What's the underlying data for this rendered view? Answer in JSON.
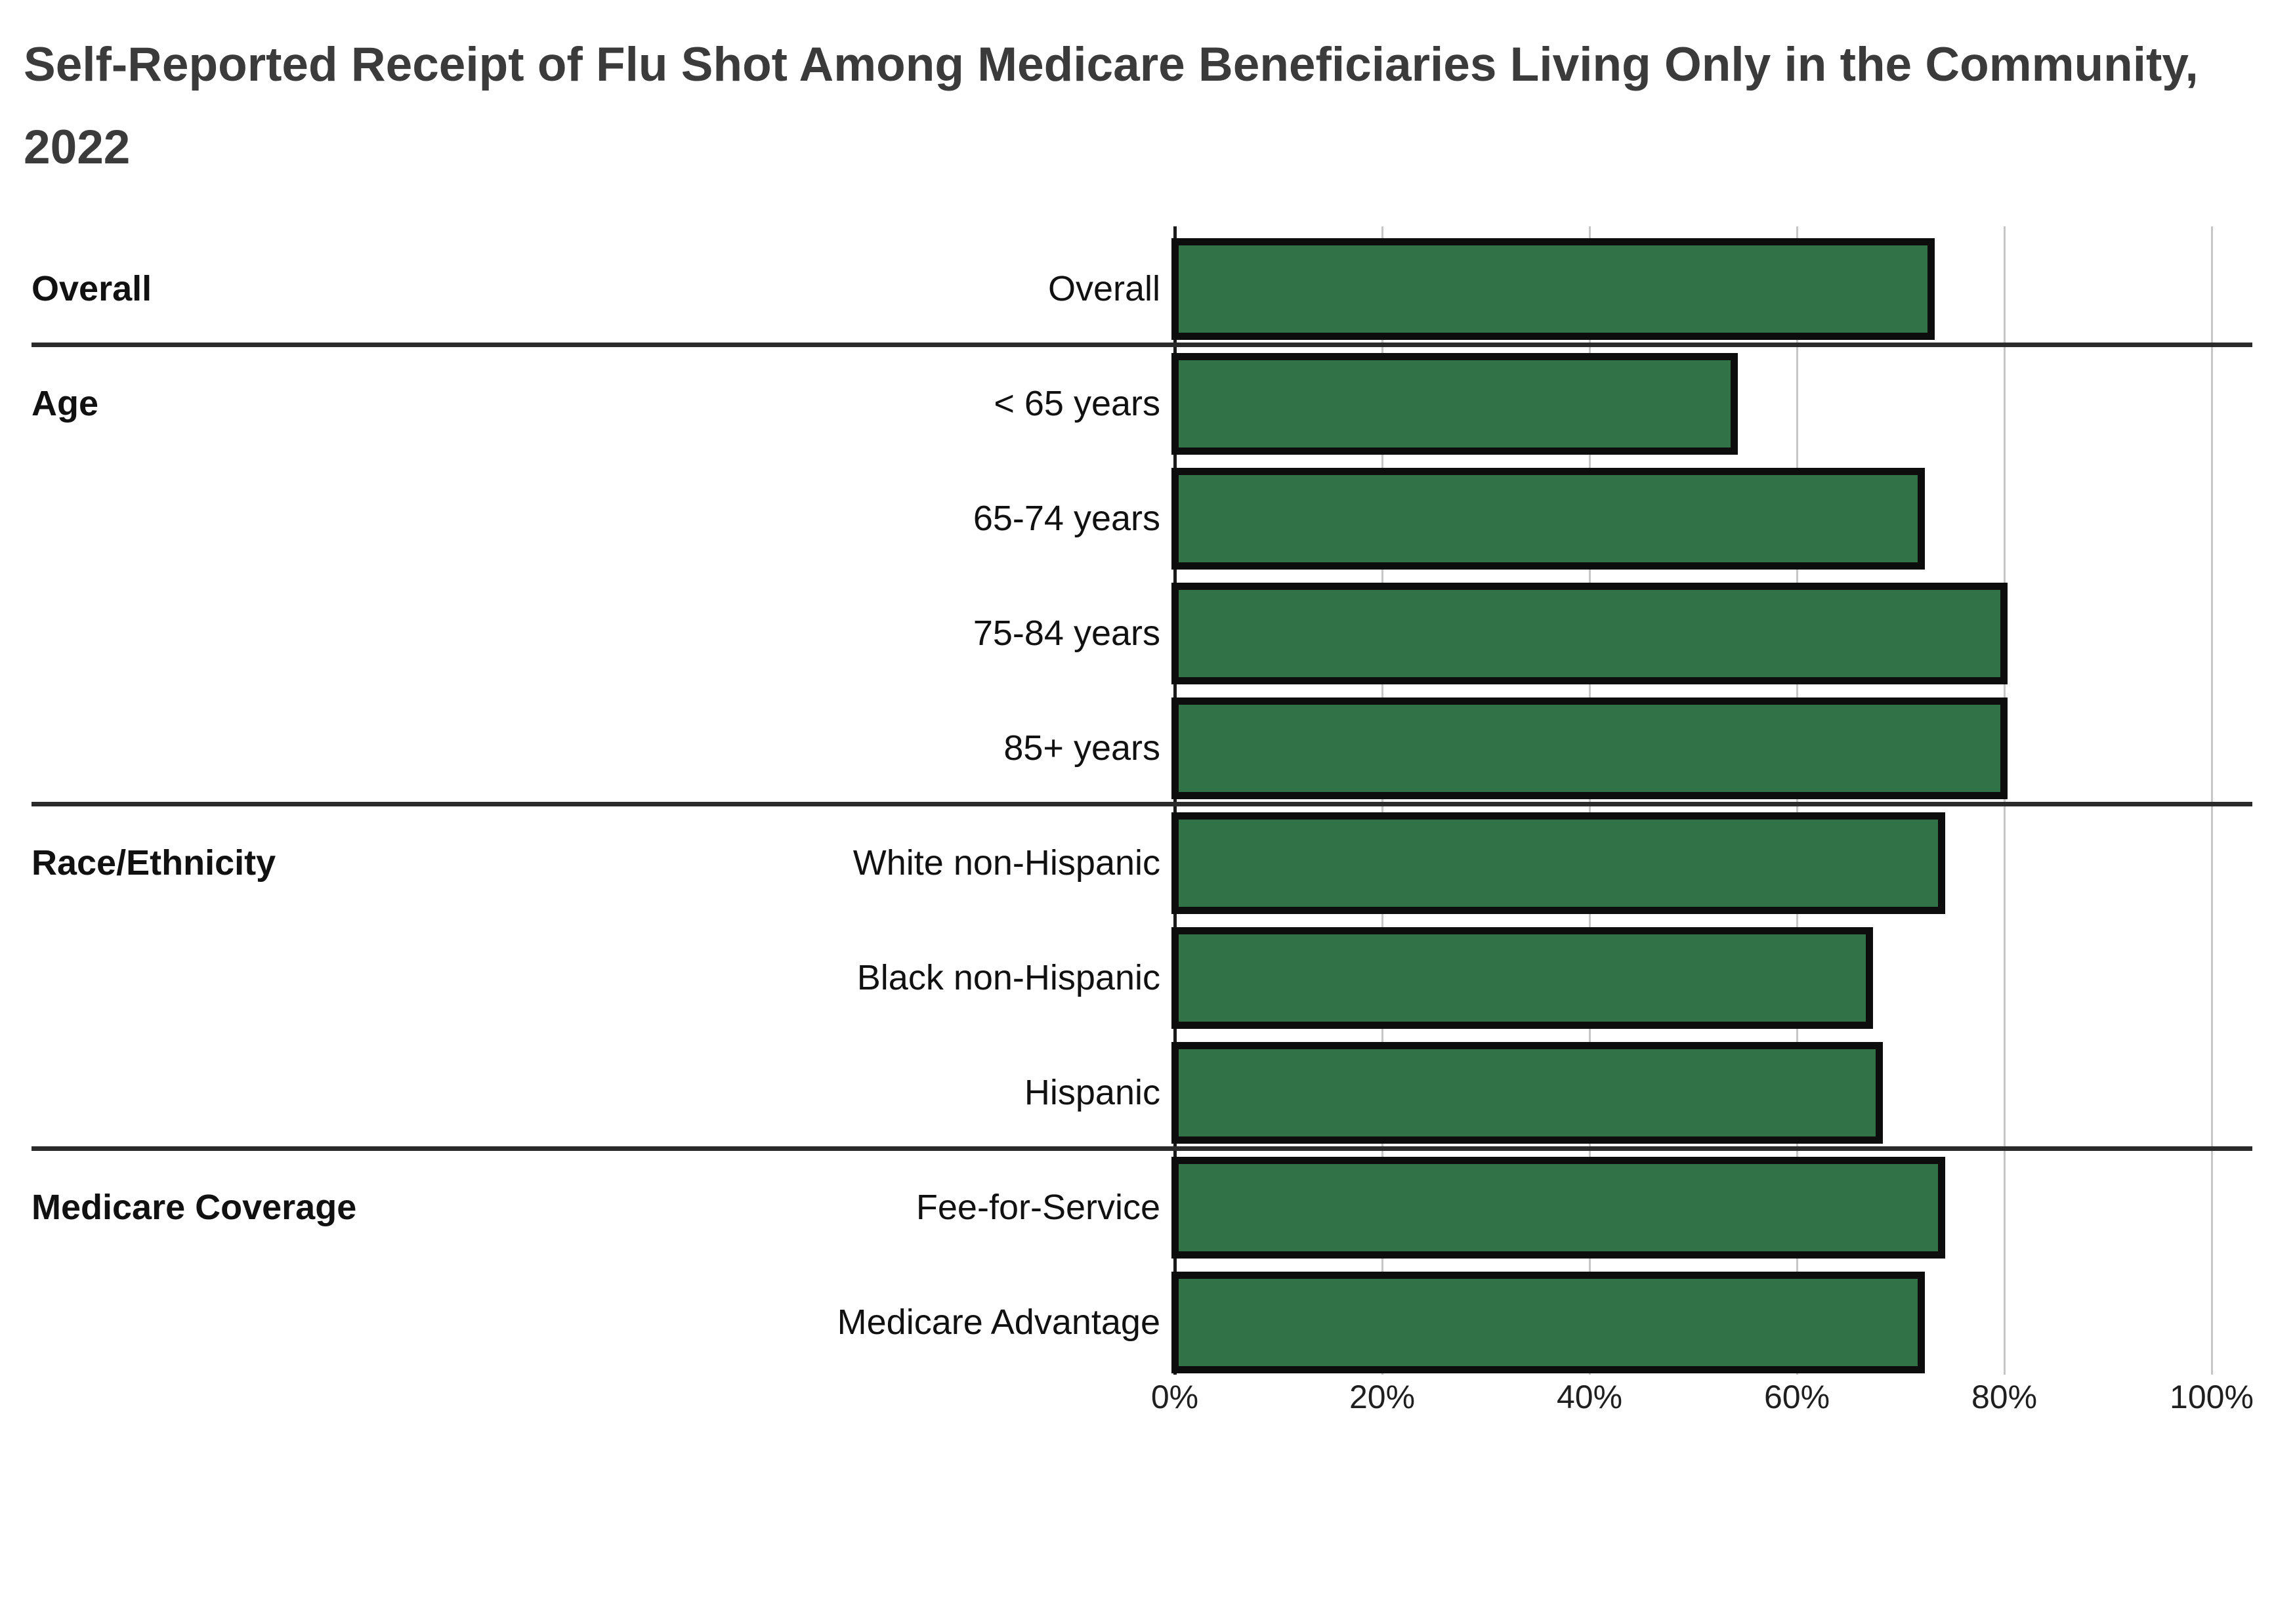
{
  "chart_data": {
    "type": "bar",
    "orientation": "horizontal",
    "title": "Self-Reported Receipt of Flu Shot Among Medicare Beneficiaries Living Only in the Community, 2022",
    "xlabel": "",
    "ylabel": "",
    "xlim": [
      0,
      100
    ],
    "x_ticks": [
      "0%",
      "20%",
      "40%",
      "60%",
      "80%",
      "100%"
    ],
    "grid": "vertical",
    "legend": "none",
    "bar_color": "#317347",
    "bar_border_color": "#0d0d0d",
    "gridline_color": "#c6c6c6",
    "axis_line_color": "#1a1a1a",
    "divider_color": "#2b2b2b",
    "title_color": "#3b3b3b",
    "groups": [
      {
        "label": "Overall",
        "first_row": 0,
        "last_row": 0
      },
      {
        "label": "Age",
        "first_row": 1,
        "last_row": 4
      },
      {
        "label": "Race/Ethnicity",
        "first_row": 5,
        "last_row": 7
      },
      {
        "label": "Medicare Coverage",
        "first_row": 8,
        "last_row": 9
      }
    ],
    "rows": [
      {
        "label": "Overall",
        "value": 73
      },
      {
        "label": "< 65 years",
        "value": 54
      },
      {
        "label": "65-74 years",
        "value": 72
      },
      {
        "label": "75-84 years",
        "value": 80
      },
      {
        "label": "85+ years",
        "value": 80
      },
      {
        "label": "White non-Hispanic",
        "value": 74
      },
      {
        "label": "Black non-Hispanic",
        "value": 67
      },
      {
        "label": "Hispanic",
        "value": 68
      },
      {
        "label": "Fee-for-Service",
        "value": 74
      },
      {
        "label": "Medicare Advantage",
        "value": 72
      }
    ]
  }
}
